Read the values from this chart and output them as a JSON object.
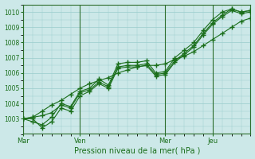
{
  "title": "",
  "xlabel": "Pression niveau de la mer( hPa )",
  "ylabel": "",
  "bg_color": "#cce8e8",
  "grid_color": "#99cccc",
  "line_color": "#1a6e1a",
  "vline_color": "#2d6e2d",
  "ylim": [
    1002.0,
    1010.5
  ],
  "yticks": [
    1003,
    1004,
    1005,
    1006,
    1007,
    1008,
    1009,
    1010
  ],
  "day_labels": [
    "Mar",
    "Ven",
    "Mer",
    "Jeu"
  ],
  "day_positions": [
    0,
    30,
    75,
    100
  ],
  "xlim": [
    0,
    120
  ],
  "series": [
    [
      1003.0,
      1002.8,
      1002.6,
      1003.1,
      1004.0,
      1003.8,
      1004.8,
      1005.0,
      1005.6,
      1005.2,
      1006.6,
      1006.7,
      1006.7,
      1006.8,
      1006.0,
      1006.1,
      1007.0,
      1007.5,
      1008.0,
      1008.8,
      1009.5,
      1010.0,
      1010.2,
      1010.0,
      1010.1
    ],
    [
      1003.0,
      1003.0,
      1002.4,
      1002.8,
      1003.7,
      1003.5,
      1004.5,
      1004.8,
      1005.3,
      1005.0,
      1006.3,
      1006.4,
      1006.4,
      1006.5,
      1005.8,
      1005.9,
      1006.7,
      1007.2,
      1007.7,
      1008.5,
      1009.2,
      1009.7,
      1010.1,
      1009.9,
      1010.0
    ],
    [
      1003.0,
      1003.1,
      1003.5,
      1003.9,
      1004.2,
      1004.6,
      1005.0,
      1005.3,
      1005.5,
      1005.7,
      1006.0,
      1006.2,
      1006.4,
      1006.5,
      1006.5,
      1006.6,
      1006.9,
      1007.1,
      1007.4,
      1007.8,
      1008.2,
      1008.6,
      1009.0,
      1009.4,
      1009.6
    ],
    [
      1003.0,
      1003.1,
      1003.2,
      1003.4,
      1003.9,
      1003.7,
      1004.7,
      1004.9,
      1005.4,
      1005.1,
      1006.4,
      1006.5,
      1006.5,
      1006.6,
      1005.9,
      1006.0,
      1006.8,
      1007.3,
      1007.8,
      1008.6,
      1009.3,
      1009.8,
      1010.2,
      1010.0,
      1010.1
    ]
  ]
}
